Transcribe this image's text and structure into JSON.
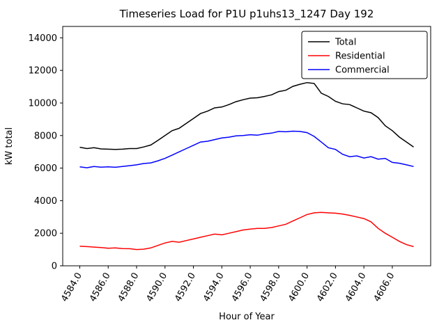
{
  "chart_data": {
    "type": "line",
    "title": "Timeseries Load for P1U p1uhs13_1247  Day 192",
    "xlabel": "Hour of Year",
    "ylabel": "kW total",
    "xlim": [
      4582.8,
      4608.7
    ],
    "ylim": [
      0,
      14700
    ],
    "xticks": [
      "4584.0",
      "4586.0",
      "4588.0",
      "4590.0",
      "4592.0",
      "4594.0",
      "4596.0",
      "4598.0",
      "4600.0",
      "4602.0",
      "4604.0",
      "4606.0"
    ],
    "yticks": [
      0,
      2000,
      4000,
      6000,
      8000,
      10000,
      12000,
      14000
    ],
    "grid": false,
    "legend_position": "upper right",
    "x": [
      4584.0,
      4584.5,
      4585.0,
      4585.5,
      4586.0,
      4586.5,
      4587.0,
      4587.5,
      4588.0,
      4588.5,
      4589.0,
      4589.5,
      4590.0,
      4590.5,
      4591.0,
      4591.5,
      4592.0,
      4592.5,
      4593.0,
      4593.5,
      4594.0,
      4594.5,
      4595.0,
      4595.5,
      4596.0,
      4596.5,
      4597.0,
      4597.5,
      4598.0,
      4598.5,
      4599.0,
      4599.5,
      4600.0,
      4600.5,
      4601.0,
      4601.5,
      4602.0,
      4602.5,
      4603.0,
      4603.5,
      4604.0,
      4604.5,
      4605.0,
      4605.5,
      4606.0,
      4606.5,
      4607.0,
      4607.5
    ],
    "series": [
      {
        "name": "Total",
        "color": "#000000",
        "values": [
          7280,
          7200,
          7250,
          7180,
          7160,
          7150,
          7160,
          7200,
          7200,
          7300,
          7420,
          7700,
          8000,
          8300,
          8450,
          8750,
          9050,
          9350,
          9500,
          9700,
          9750,
          9900,
          10080,
          10200,
          10300,
          10320,
          10400,
          10500,
          10700,
          10780,
          11020,
          11150,
          11250,
          11200,
          10600,
          10400,
          10100,
          9950,
          9900,
          9700,
          9500,
          9400,
          9100,
          8600,
          8300,
          7900,
          7600,
          7300
        ]
      },
      {
        "name": "Residential",
        "color": "#ff0000",
        "values": [
          1200,
          1180,
          1150,
          1120,
          1080,
          1100,
          1060,
          1050,
          1000,
          1020,
          1100,
          1250,
          1400,
          1500,
          1450,
          1550,
          1650,
          1750,
          1850,
          1950,
          1900,
          2000,
          2100,
          2200,
          2250,
          2300,
          2300,
          2350,
          2450,
          2550,
          2750,
          2950,
          3150,
          3250,
          3280,
          3250,
          3230,
          3180,
          3100,
          3000,
          2900,
          2700,
          2300,
          2000,
          1750,
          1500,
          1300,
          1180
        ]
      },
      {
        "name": "Commercial",
        "color": "#0000ff",
        "values": [
          6080,
          6020,
          6100,
          6060,
          6080,
          6050,
          6100,
          6150,
          6200,
          6280,
          6320,
          6450,
          6600,
          6800,
          7000,
          7200,
          7400,
          7600,
          7650,
          7750,
          7850,
          7900,
          7980,
          8000,
          8050,
          8020,
          8100,
          8150,
          8250,
          8230,
          8270,
          8250,
          8180,
          7950,
          7600,
          7250,
          7150,
          6850,
          6700,
          6750,
          6620,
          6700,
          6550,
          6600,
          6350,
          6300,
          6200,
          6100
        ]
      }
    ]
  }
}
